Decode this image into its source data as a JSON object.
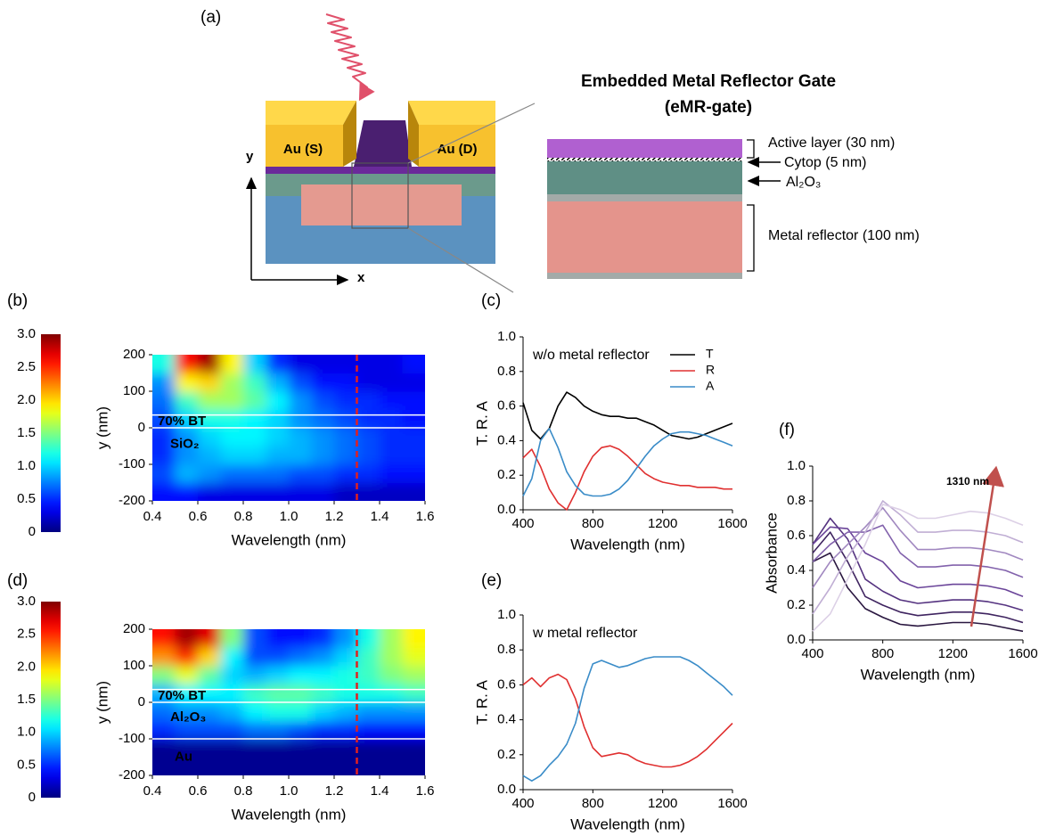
{
  "diagram": {
    "panel_label": "(a)",
    "source_label": "Au (S)",
    "drain_label": "Au (D)",
    "y_axis": "y",
    "x_axis": "x",
    "title": "Embedded Metal Reflector Gate",
    "subtitle": "(eMR-gate)",
    "layers": [
      "Active layer (30 nm)",
      "Cytop (5 nm)",
      "Al₂O₃",
      "Metal reflector (100 nm)"
    ]
  },
  "chart_data": [
    {
      "type": "heatmap",
      "panel_label": "(b)",
      "colormap": "jet",
      "clim": [
        0,
        3
      ],
      "cticks": [
        0,
        0.5,
        {
          "value": 1,
          "label": "1.0"
        },
        1.5,
        {
          "value": 2,
          "label": "2.0"
        },
        2.5,
        {
          "value": 3,
          "label": "3.0"
        }
      ],
      "x": [
        0.45,
        0.55,
        0.65,
        0.75,
        0.85,
        0.95,
        1.05,
        1.15,
        1.25,
        1.35,
        1.45,
        1.55
      ],
      "y": [
        -175,
        -125,
        -75,
        -25,
        25,
        75,
        125,
        175
      ],
      "values": [
        [
          0.4,
          0.4,
          0.3,
          0.3,
          0.3,
          0.3,
          0.3,
          0.3,
          0.2,
          0.2,
          0.2,
          0.2
        ],
        [
          0.6,
          0.9,
          0.8,
          0.7,
          0.7,
          0.7,
          0.6,
          0.6,
          0.5,
          0.5,
          0.4,
          0.4
        ],
        [
          0.5,
          0.8,
          0.9,
          1.0,
          1.0,
          0.9,
          0.9,
          0.8,
          0.7,
          0.6,
          0.5,
          0.5
        ],
        [
          0.5,
          0.8,
          1.0,
          1.1,
          1.1,
          1.0,
          0.9,
          0.8,
          0.7,
          0.6,
          0.5,
          0.5
        ],
        [
          0.6,
          1.0,
          1.2,
          1.2,
          1.1,
          1.0,
          0.8,
          0.7,
          0.6,
          0.5,
          0.5,
          0.4
        ],
        [
          0.7,
          1.3,
          1.6,
          1.6,
          1.4,
          1.1,
          0.8,
          0.6,
          0.5,
          0.5,
          0.4,
          0.4
        ],
        [
          0.8,
          1.9,
          2.0,
          1.6,
          1.3,
          0.9,
          0.6,
          0.4,
          0.4,
          0.3,
          0.3,
          0.3
        ],
        [
          1.2,
          2.6,
          2.9,
          1.9,
          1.0,
          0.5,
          0.3,
          0.3,
          0.3,
          0.3,
          0.3,
          0.4
        ]
      ],
      "xlim": [
        0.4,
        1.6
      ],
      "xticks": [
        0.4,
        0.6,
        0.8,
        {
          "value": 1,
          "label": "1.0"
        },
        1.2,
        1.4,
        1.6
      ],
      "ylim": [
        -200,
        200
      ],
      "yticks": [
        -200,
        -100,
        0,
        100,
        200
      ],
      "xlabel": "Wavelength (nm)",
      "ylabel": "y (nm)",
      "hlines": [
        35,
        0
      ],
      "vline": 1.3,
      "annotations": [
        "70% BT",
        "SiO₂"
      ]
    },
    {
      "type": "line",
      "panel_label": "(c)",
      "annotation": "w/o metal reflector",
      "legend": "top-right",
      "x": [
        400,
        450,
        500,
        550,
        600,
        650,
        700,
        750,
        800,
        850,
        900,
        950,
        1000,
        1050,
        1100,
        1150,
        1200,
        1250,
        1300,
        1350,
        1400,
        1450,
        1500,
        1550,
        1600
      ],
      "series": [
        {
          "name": "T",
          "color": "#000000",
          "values": [
            0.62,
            0.46,
            0.41,
            0.47,
            0.6,
            0.68,
            0.65,
            0.6,
            0.57,
            0.55,
            0.54,
            0.54,
            0.53,
            0.53,
            0.51,
            0.49,
            0.46,
            0.43,
            0.42,
            0.41,
            0.42,
            0.44,
            0.46,
            0.48,
            0.5
          ]
        },
        {
          "name": "R",
          "color": "#e03030",
          "values": [
            0.3,
            0.35,
            0.25,
            0.12,
            0.04,
            0.0,
            0.1,
            0.22,
            0.31,
            0.36,
            0.37,
            0.35,
            0.31,
            0.26,
            0.21,
            0.18,
            0.16,
            0.15,
            0.14,
            0.14,
            0.13,
            0.13,
            0.13,
            0.12,
            0.12
          ]
        },
        {
          "name": "A",
          "color": "#3a8cc8",
          "values": [
            0.08,
            0.18,
            0.4,
            0.47,
            0.36,
            0.22,
            0.14,
            0.09,
            0.08,
            0.08,
            0.09,
            0.12,
            0.17,
            0.24,
            0.31,
            0.37,
            0.41,
            0.44,
            0.45,
            0.45,
            0.44,
            0.43,
            0.41,
            0.39,
            0.37
          ]
        }
      ],
      "xlim": [
        400,
        1600
      ],
      "xticks": [
        400,
        800,
        1200,
        1600
      ],
      "ylim": [
        0,
        1
      ],
      "yticks": [
        {
          "value": 0,
          "label": "0.0"
        },
        0.2,
        0.4,
        0.6,
        0.8,
        {
          "value": 1,
          "label": "1.0"
        }
      ],
      "xlabel": "Wavelength (nm)",
      "ylabel": "T. R. A"
    },
    {
      "type": "heatmap",
      "panel_label": "(d)",
      "colormap": "jet",
      "clim": [
        0,
        3
      ],
      "cticks": [
        0,
        0.5,
        {
          "value": 1,
          "label": "1.0"
        },
        1.5,
        {
          "value": 2,
          "label": "2.0"
        },
        2.5,
        {
          "value": 3,
          "label": "3.0"
        }
      ],
      "x": [
        0.45,
        0.55,
        0.65,
        0.75,
        0.85,
        0.95,
        1.05,
        1.15,
        1.25,
        1.35,
        1.45,
        1.55
      ],
      "y": [
        -175,
        -125,
        -75,
        -25,
        25,
        75,
        125,
        175
      ],
      "values": [
        [
          0.05,
          0.05,
          0.05,
          0.05,
          0.05,
          0.05,
          0.05,
          0.05,
          0.05,
          0.05,
          0.05,
          0.05
        ],
        [
          0.05,
          0.05,
          0.05,
          0.05,
          0.05,
          0.05,
          0.05,
          0.05,
          0.05,
          0.05,
          0.05,
          0.05
        ],
        [
          0.5,
          0.6,
          0.6,
          0.6,
          0.7,
          0.7,
          0.6,
          0.5,
          0.5,
          0.4,
          0.4,
          0.4
        ],
        [
          0.7,
          0.8,
          0.8,
          0.9,
          1.1,
          1.2,
          1.2,
          1.0,
          0.9,
          0.8,
          0.8,
          0.8
        ],
        [
          0.9,
          1.1,
          1.1,
          1.1,
          1.3,
          1.4,
          1.4,
          1.3,
          1.2,
          1.2,
          1.2,
          1.3
        ],
        [
          1.5,
          1.8,
          1.4,
          1.0,
          0.9,
          1.0,
          1.1,
          1.1,
          1.2,
          1.3,
          1.5,
          1.6
        ],
        [
          2.2,
          2.5,
          2.0,
          1.1,
          0.6,
          0.6,
          0.7,
          0.8,
          1.0,
          1.3,
          1.6,
          1.8
        ],
        [
          2.6,
          2.9,
          2.7,
          1.5,
          0.6,
          0.4,
          0.4,
          0.5,
          0.8,
          1.2,
          1.6,
          1.9
        ]
      ],
      "xlim": [
        0.4,
        1.6
      ],
      "xticks": [
        0.4,
        0.6,
        0.8,
        {
          "value": 1,
          "label": "1.0"
        },
        1.2,
        1.4,
        1.6
      ],
      "ylim": [
        -200,
        200
      ],
      "yticks": [
        -200,
        -100,
        0,
        100,
        200
      ],
      "xlabel": "Wavelength (nm)",
      "ylabel": "y (nm)",
      "hlines": [
        35,
        0,
        -100
      ],
      "vline": 1.3,
      "annotations": [
        "70% BT",
        "Al₂O₃",
        "Au"
      ]
    },
    {
      "type": "line",
      "panel_label": "(e)",
      "annotation": "w metal reflector",
      "x": [
        400,
        450,
        500,
        550,
        600,
        650,
        700,
        750,
        800,
        850,
        900,
        950,
        1000,
        1050,
        1100,
        1150,
        1200,
        1250,
        1300,
        1350,
        1400,
        1450,
        1500,
        1550,
        1600
      ],
      "series": [
        {
          "color": "#e03030",
          "values": [
            0.6,
            0.64,
            0.59,
            0.64,
            0.66,
            0.63,
            0.52,
            0.36,
            0.24,
            0.19,
            0.2,
            0.21,
            0.2,
            0.17,
            0.15,
            0.14,
            0.13,
            0.13,
            0.14,
            0.16,
            0.19,
            0.23,
            0.28,
            0.33,
            0.38
          ]
        },
        {
          "color": "#3a8cc8",
          "values": [
            0.08,
            0.05,
            0.08,
            0.14,
            0.19,
            0.26,
            0.38,
            0.58,
            0.72,
            0.74,
            0.72,
            0.7,
            0.71,
            0.73,
            0.75,
            0.76,
            0.76,
            0.76,
            0.76,
            0.74,
            0.71,
            0.67,
            0.63,
            0.59,
            0.54
          ]
        }
      ],
      "xlim": [
        400,
        1600
      ],
      "xticks": [
        400,
        800,
        1200,
        1600
      ],
      "ylim": [
        0,
        1
      ],
      "yticks": [
        {
          "value": 0,
          "label": "0.0"
        },
        0.2,
        0.4,
        0.6,
        0.8,
        {
          "value": 1,
          "label": "1.0"
        }
      ],
      "xlabel": "Wavelength (nm)",
      "ylabel": "T. R. A"
    },
    {
      "type": "line",
      "panel_label": "(f)",
      "arrow_label": "1310 nm",
      "x": [
        400,
        500,
        600,
        700,
        800,
        900,
        1000,
        1100,
        1200,
        1300,
        1400,
        1500,
        1600
      ],
      "series": [
        {
          "color": "#2a1740",
          "values": [
            0.45,
            0.5,
            0.3,
            0.18,
            0.13,
            0.09,
            0.08,
            0.09,
            0.1,
            0.1,
            0.09,
            0.07,
            0.05
          ]
        },
        {
          "color": "#3f2460",
          "values": [
            0.5,
            0.62,
            0.45,
            0.25,
            0.2,
            0.16,
            0.14,
            0.15,
            0.16,
            0.16,
            0.15,
            0.13,
            0.1
          ]
        },
        {
          "color": "#553380",
          "values": [
            0.55,
            0.7,
            0.58,
            0.35,
            0.28,
            0.23,
            0.21,
            0.22,
            0.23,
            0.23,
            0.22,
            0.2,
            0.17
          ]
        },
        {
          "color": "#6a4499",
          "values": [
            0.55,
            0.65,
            0.64,
            0.5,
            0.45,
            0.34,
            0.3,
            0.31,
            0.32,
            0.32,
            0.31,
            0.29,
            0.25
          ]
        },
        {
          "color": "#8262ac",
          "values": [
            0.45,
            0.55,
            0.62,
            0.62,
            0.66,
            0.5,
            0.42,
            0.42,
            0.43,
            0.43,
            0.42,
            0.4,
            0.36
          ]
        },
        {
          "color": "#a188c0",
          "values": [
            0.3,
            0.45,
            0.55,
            0.65,
            0.76,
            0.63,
            0.52,
            0.52,
            0.53,
            0.53,
            0.52,
            0.5,
            0.46
          ]
        },
        {
          "color": "#c0aed4",
          "values": [
            0.15,
            0.3,
            0.48,
            0.62,
            0.8,
            0.72,
            0.62,
            0.62,
            0.63,
            0.63,
            0.62,
            0.6,
            0.56
          ]
        },
        {
          "color": "#dcd0e6",
          "values": [
            0.05,
            0.15,
            0.35,
            0.55,
            0.78,
            0.75,
            0.7,
            0.7,
            0.72,
            0.74,
            0.73,
            0.7,
            0.66
          ]
        }
      ],
      "xlim": [
        400,
        1600
      ],
      "xticks": [
        400,
        800,
        1200,
        1600
      ],
      "ylim": [
        0,
        1
      ],
      "yticks": [
        {
          "value": 0,
          "label": "0.0"
        },
        0.2,
        0.4,
        0.6,
        0.8,
        {
          "value": 1,
          "label": "1.0"
        }
      ],
      "xlabel": "Wavelength (nm)",
      "ylabel": "Absorbance"
    }
  ]
}
